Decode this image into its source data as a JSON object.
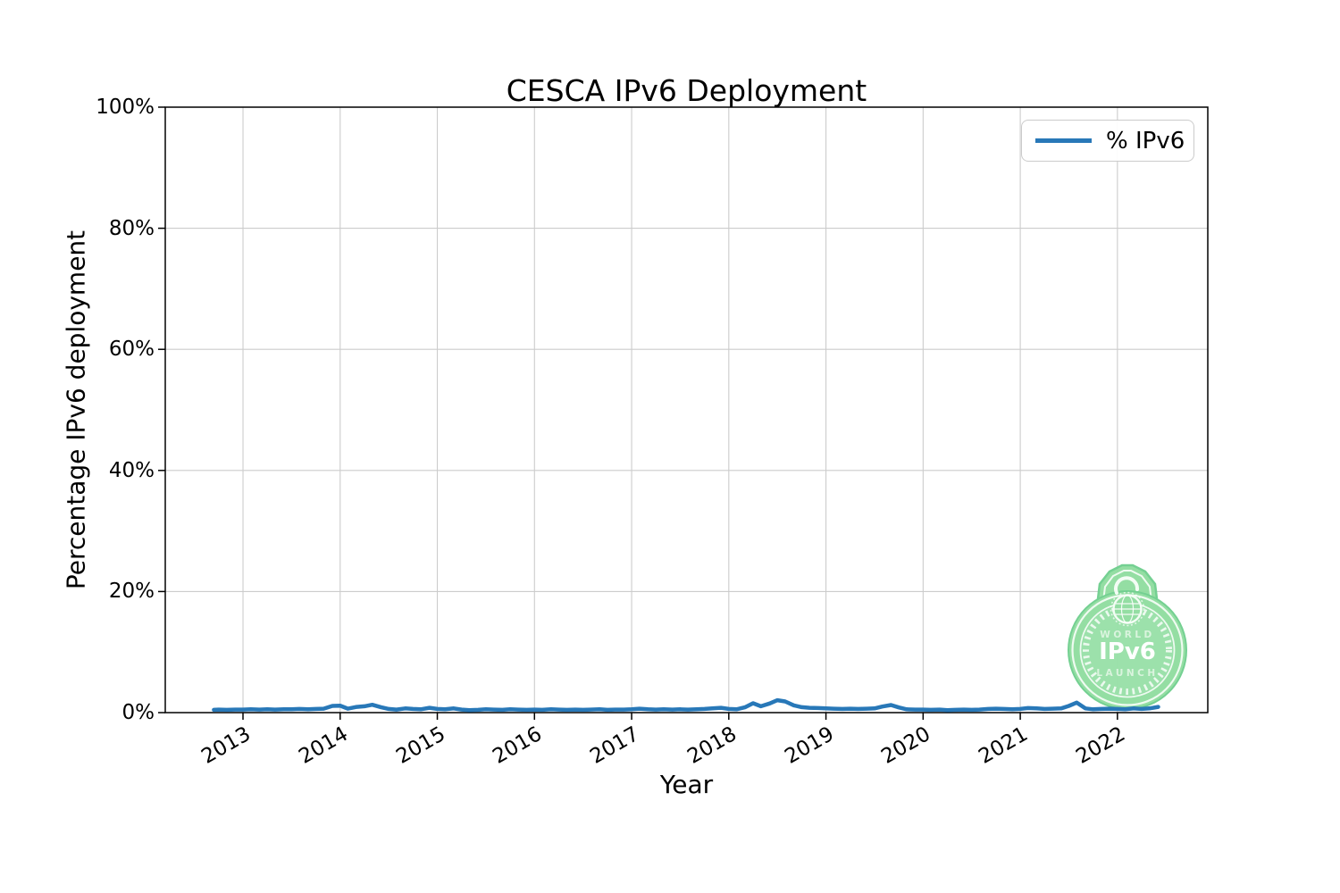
{
  "figure": {
    "title": "CESCA IPv6 Deployment"
  },
  "axes": {
    "xlabel": "Year",
    "ylabel": "Percentage IPv6 deployment",
    "xticklabels": [
      "2013",
      "2014",
      "2015",
      "2016",
      "2017",
      "2018",
      "2019",
      "2020",
      "2021",
      "2022"
    ],
    "yticklabels": [
      "0%",
      "20%",
      "40%",
      "60%",
      "80%",
      "100%"
    ]
  },
  "legend": {
    "label": "% IPv6"
  },
  "badge": {
    "word_top": "WORLD",
    "word_main": "IPv6",
    "word_bottom": "LAUNCH"
  },
  "colors": {
    "line": "#2878b8",
    "grid": "#cccccc",
    "spine": "#000000",
    "badge_green": "#90dda0",
    "badge_green_light": "#99e0a8",
    "badge_green_dark": "#6fcf8e",
    "badge_pale": "#d9f4dd"
  },
  "chart_data": {
    "type": "line",
    "title": "CESCA IPv6 Deployment",
    "xlabel": "Year",
    "ylabel": "Percentage IPv6 deployment",
    "xlim": [
      2012.2,
      2022.93
    ],
    "ylim": [
      0,
      100
    ],
    "xticks": [
      2013,
      2014,
      2015,
      2016,
      2017,
      2018,
      2019,
      2020,
      2021,
      2022
    ],
    "yticks": [
      0,
      20,
      40,
      60,
      80,
      100
    ],
    "grid": true,
    "legend_position": "upper right",
    "series": [
      {
        "name": "% IPv6",
        "color": "#2878b8",
        "points": [
          [
            2012.7,
            0.45
          ],
          [
            2012.75,
            0.5
          ],
          [
            2012.83,
            0.45
          ],
          [
            2012.92,
            0.5
          ],
          [
            2013.0,
            0.5
          ],
          [
            2013.08,
            0.55
          ],
          [
            2013.17,
            0.5
          ],
          [
            2013.25,
            0.55
          ],
          [
            2013.33,
            0.5
          ],
          [
            2013.42,
            0.55
          ],
          [
            2013.5,
            0.55
          ],
          [
            2013.58,
            0.6
          ],
          [
            2013.67,
            0.55
          ],
          [
            2013.75,
            0.6
          ],
          [
            2013.83,
            0.65
          ],
          [
            2013.92,
            1.1
          ],
          [
            2014.0,
            1.15
          ],
          [
            2014.08,
            0.65
          ],
          [
            2014.17,
            0.95
          ],
          [
            2014.25,
            1.05
          ],
          [
            2014.33,
            1.3
          ],
          [
            2014.42,
            0.9
          ],
          [
            2014.5,
            0.6
          ],
          [
            2014.58,
            0.5
          ],
          [
            2014.67,
            0.7
          ],
          [
            2014.75,
            0.6
          ],
          [
            2014.83,
            0.55
          ],
          [
            2014.92,
            0.8
          ],
          [
            2015.0,
            0.6
          ],
          [
            2015.08,
            0.55
          ],
          [
            2015.17,
            0.7
          ],
          [
            2015.25,
            0.5
          ],
          [
            2015.33,
            0.4
          ],
          [
            2015.42,
            0.45
          ],
          [
            2015.5,
            0.55
          ],
          [
            2015.58,
            0.5
          ],
          [
            2015.67,
            0.45
          ],
          [
            2015.75,
            0.55
          ],
          [
            2015.83,
            0.5
          ],
          [
            2015.92,
            0.45
          ],
          [
            2016.0,
            0.5
          ],
          [
            2016.08,
            0.45
          ],
          [
            2016.17,
            0.55
          ],
          [
            2016.25,
            0.5
          ],
          [
            2016.33,
            0.45
          ],
          [
            2016.42,
            0.5
          ],
          [
            2016.5,
            0.45
          ],
          [
            2016.58,
            0.5
          ],
          [
            2016.67,
            0.55
          ],
          [
            2016.75,
            0.45
          ],
          [
            2016.83,
            0.5
          ],
          [
            2016.92,
            0.5
          ],
          [
            2017.0,
            0.55
          ],
          [
            2017.08,
            0.65
          ],
          [
            2017.17,
            0.55
          ],
          [
            2017.25,
            0.5
          ],
          [
            2017.33,
            0.55
          ],
          [
            2017.42,
            0.5
          ],
          [
            2017.5,
            0.55
          ],
          [
            2017.58,
            0.5
          ],
          [
            2017.67,
            0.55
          ],
          [
            2017.75,
            0.6
          ],
          [
            2017.83,
            0.7
          ],
          [
            2017.92,
            0.8
          ],
          [
            2018.0,
            0.6
          ],
          [
            2018.08,
            0.55
          ],
          [
            2018.17,
            0.9
          ],
          [
            2018.25,
            1.55
          ],
          [
            2018.33,
            1.05
          ],
          [
            2018.42,
            1.5
          ],
          [
            2018.5,
            2.05
          ],
          [
            2018.58,
            1.85
          ],
          [
            2018.67,
            1.2
          ],
          [
            2018.75,
            0.9
          ],
          [
            2018.83,
            0.8
          ],
          [
            2018.92,
            0.75
          ],
          [
            2019.0,
            0.7
          ],
          [
            2019.08,
            0.65
          ],
          [
            2019.17,
            0.6
          ],
          [
            2019.25,
            0.65
          ],
          [
            2019.33,
            0.6
          ],
          [
            2019.42,
            0.65
          ],
          [
            2019.5,
            0.7
          ],
          [
            2019.58,
            1.0
          ],
          [
            2019.67,
            1.25
          ],
          [
            2019.75,
            0.85
          ],
          [
            2019.83,
            0.55
          ],
          [
            2019.92,
            0.5
          ],
          [
            2020.0,
            0.5
          ],
          [
            2020.08,
            0.45
          ],
          [
            2020.17,
            0.5
          ],
          [
            2020.25,
            0.4
          ],
          [
            2020.33,
            0.45
          ],
          [
            2020.42,
            0.5
          ],
          [
            2020.5,
            0.45
          ],
          [
            2020.58,
            0.5
          ],
          [
            2020.67,
            0.6
          ],
          [
            2020.75,
            0.65
          ],
          [
            2020.83,
            0.6
          ],
          [
            2020.92,
            0.55
          ],
          [
            2021.0,
            0.6
          ],
          [
            2021.08,
            0.75
          ],
          [
            2021.17,
            0.7
          ],
          [
            2021.25,
            0.6
          ],
          [
            2021.33,
            0.65
          ],
          [
            2021.42,
            0.7
          ],
          [
            2021.5,
            1.1
          ],
          [
            2021.58,
            1.65
          ],
          [
            2021.67,
            0.7
          ],
          [
            2021.75,
            0.55
          ],
          [
            2021.83,
            0.6
          ],
          [
            2021.92,
            0.65
          ],
          [
            2022.0,
            0.6
          ],
          [
            2022.08,
            0.55
          ],
          [
            2022.17,
            0.7
          ],
          [
            2022.25,
            0.6
          ],
          [
            2022.33,
            0.7
          ],
          [
            2022.42,
            0.95
          ]
        ]
      }
    ]
  }
}
